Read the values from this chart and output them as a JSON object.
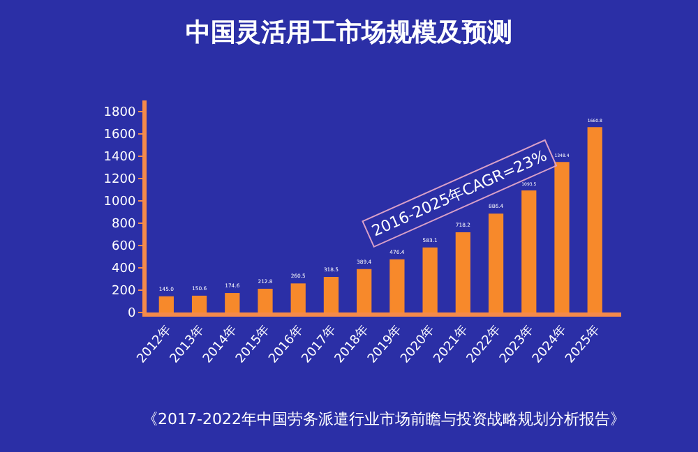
{
  "chart_data": {
    "type": "bar",
    "title": "中国灵活用工市场规模及预测",
    "categories": [
      "2012年",
      "2013年",
      "2014年",
      "2015年",
      "2016年",
      "2017年",
      "2018年",
      "2019年",
      "2020年",
      "2021年",
      "2022年",
      "2023年",
      "2024年",
      "2025年"
    ],
    "values": [
      145.0,
      150.6,
      174.6,
      212.8,
      260.5,
      318.5,
      389.4,
      476.4,
      583.1,
      718.2,
      886.4,
      1093.5,
      1348.4,
      1660.8
    ],
    "color": "#f7892b",
    "ylim": [
      0,
      1900
    ],
    "yticks": [
      0,
      200,
      400,
      600,
      800,
      1000,
      1200,
      1400,
      1600,
      1800
    ],
    "value_labels": [
      "145.0",
      "150.6",
      "174.6",
      "212.8",
      "260.5",
      "318.5",
      "389.4",
      "476.4",
      "583.1",
      "718.2",
      "886.4",
      "1093.5",
      "1348.4",
      "1660.8"
    ],
    "grid": false,
    "annotations": [
      "2016-2025年CAGR=23%",
      "《2017-2022年中国劳务派遣行业市场前瞻与投资战略规划分析报告》"
    ]
  }
}
